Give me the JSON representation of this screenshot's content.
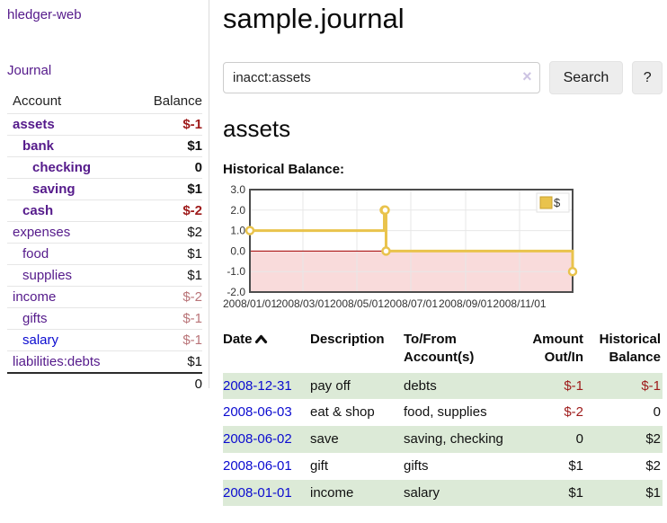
{
  "app_title": "hledger-web",
  "sidebar": {
    "journal_link": "Journal",
    "accounts_table": {
      "headers": {
        "account": "Account",
        "balance": "Balance"
      },
      "rows": [
        {
          "name": "assets",
          "balance": "$-1",
          "depth": 1,
          "in_view": true,
          "negative": "strong",
          "link_color": "purple"
        },
        {
          "name": "bank",
          "balance": "$1",
          "depth": 2,
          "in_view": true,
          "negative": "none",
          "link_color": "purple"
        },
        {
          "name": "checking",
          "balance": "0",
          "depth": 3,
          "in_view": true,
          "negative": "none",
          "link_color": "purple"
        },
        {
          "name": "saving",
          "balance": "$1",
          "depth": 3,
          "in_view": true,
          "negative": "none",
          "link_color": "purple"
        },
        {
          "name": "cash",
          "balance": "$-2",
          "depth": 2,
          "in_view": true,
          "negative": "strong",
          "link_color": "purple"
        },
        {
          "name": "expenses",
          "balance": "$2",
          "depth": 1,
          "in_view": false,
          "negative": "none",
          "link_color": "purple"
        },
        {
          "name": "food",
          "balance": "$1",
          "depth": 2,
          "in_view": false,
          "negative": "none",
          "link_color": "purple"
        },
        {
          "name": "supplies",
          "balance": "$1",
          "depth": 2,
          "in_view": false,
          "negative": "none",
          "link_color": "purple"
        },
        {
          "name": "income",
          "balance": "$-2",
          "depth": 1,
          "in_view": false,
          "negative": "dim",
          "link_color": "purple"
        },
        {
          "name": "gifts",
          "balance": "$-1",
          "depth": 2,
          "in_view": false,
          "negative": "dim",
          "link_color": "purple"
        },
        {
          "name": "salary",
          "balance": "$-1",
          "depth": 2,
          "in_view": false,
          "negative": "dim",
          "link_color": "blue"
        },
        {
          "name": "liabilities:debts",
          "balance": "$1",
          "depth": 1,
          "in_view": false,
          "negative": "none",
          "link_color": "purple"
        }
      ],
      "total": "0"
    }
  },
  "main": {
    "title": "sample.journal",
    "search": {
      "value": "inacct:assets",
      "clear_icon": "×",
      "search_button": "Search",
      "help_button": "?"
    },
    "account_heading": "assets",
    "chart_title": "Historical Balance:"
  },
  "chart_data": {
    "type": "line",
    "steps": true,
    "title": "Historical Balance:",
    "legend": {
      "label": "$",
      "position": "top-right"
    },
    "series": [
      {
        "name": "$",
        "points": [
          {
            "date": "2008-01-01",
            "value": 1
          },
          {
            "date": "2008-06-01",
            "value": 2
          },
          {
            "date": "2008-06-02",
            "value": 2
          },
          {
            "date": "2008-06-03",
            "value": 0
          },
          {
            "date": "2008-12-31",
            "value": -1
          }
        ]
      }
    ],
    "x_ticks": [
      {
        "date": "2008-01-01",
        "label": "2008/01/01"
      },
      {
        "date": "2008-03-01",
        "label": "2008/03/01"
      },
      {
        "date": "2008-05-01",
        "label": "2008/05/01"
      },
      {
        "date": "2008-07-01",
        "label": "2008/07/01"
      },
      {
        "date": "2008-09-01",
        "label": "2008/09/01"
      },
      {
        "date": "2008-11-01",
        "label": "2008/11/01"
      }
    ],
    "y_ticks": [
      "3.0",
      "2.0",
      "1.0",
      "0.0",
      "-1.0",
      "-2.0"
    ],
    "ylim": [
      -2,
      3
    ],
    "x_range": {
      "start": "2008-01-01",
      "end": "2008-12-31"
    },
    "grid": true,
    "negative_region_shaded": true
  },
  "register": {
    "headers": [
      "Date",
      "Description",
      "To/From Account(s)",
      "Amount Out/In",
      "Historical Balance"
    ],
    "sort_icon": "chevron-up",
    "rows": [
      {
        "date": "2008-12-31",
        "description": "pay off",
        "accounts": "debts",
        "amount": "$-1",
        "balance": "$-1"
      },
      {
        "date": "2008-06-03",
        "description": "eat & shop",
        "accounts": "food, supplies",
        "amount": "$-2",
        "balance": "0"
      },
      {
        "date": "2008-06-02",
        "description": "save",
        "accounts": "saving, checking",
        "amount": "0",
        "balance": "$2"
      },
      {
        "date": "2008-06-01",
        "description": "gift",
        "accounts": "gifts",
        "amount": "$1",
        "balance": "$2"
      },
      {
        "date": "2008-01-01",
        "description": "income",
        "accounts": "salary",
        "amount": "$1",
        "balance": "$1"
      }
    ]
  },
  "colors": {
    "link_purple": "#551A8B",
    "link_blue": "#0b0bd0",
    "negative_strong": "#9e1a1a",
    "negative_dim": "#b97478",
    "register_row_green": "#dcead7",
    "chart_line_gold": "#e9c34c",
    "chart_negative_fill": "#f9dbdb",
    "chart_zero_line": "#a40000",
    "chart_grid": "#e7e7e7",
    "chart_border": "#4d4d4d"
  }
}
